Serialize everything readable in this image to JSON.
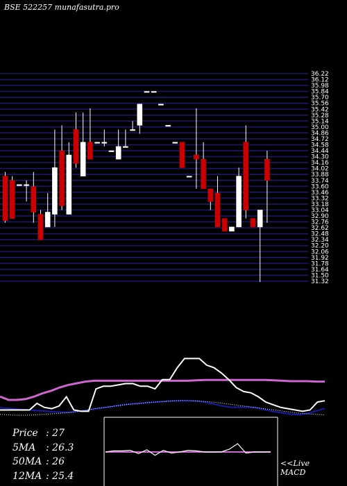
{
  "header": {
    "title": "BSE 522257 munafasutra.pro"
  },
  "stats": {
    "price_label": "Price",
    "price": "27",
    "ma5_label": "5MA",
    "ma5": "26.3",
    "ma50_label": "50MA",
    "ma50": "26",
    "ma12_label": "12MA",
    "ma12": "25.4"
  },
  "macd_panel": {
    "line1": "<<Live",
    "line2": "MACD"
  },
  "colors": {
    "background": "#000000",
    "grid": "#1a1a66",
    "bull": "#ffffff",
    "bear": "#cc0000",
    "ma_pink": "#cc66cc",
    "ma_blue": "#1a1aaa",
    "ma_white": "#ffffff"
  },
  "chart_data": {
    "type": "candlestick",
    "title": "BSE 522257 munafasutra.pro",
    "ylim": [
      31.32,
      36.22
    ],
    "grid": true,
    "y_tick_labels": [
      "36.22",
      "36.12",
      "35.98",
      "35.84",
      "35.70",
      "35.56",
      "35.42",
      "35.28",
      "35.14",
      "35.00",
      "34.86",
      "34.72",
      "34.58",
      "34.44",
      "34.30",
      "34.16",
      "34.02",
      "33.88",
      "33.74",
      "33.60",
      "33.46",
      "33.32",
      "33.18",
      "33.04",
      "32.90",
      "32.76",
      "32.62",
      "32.48",
      "32.34",
      "32.20",
      "32.06",
      "31.92",
      "31.78",
      "31.64",
      "31.50",
      "31.32"
    ],
    "candles": [
      {
        "o": 33.8,
        "h": 33.9,
        "l": 32.7,
        "c": 32.75
      },
      {
        "o": 33.7,
        "h": 33.8,
        "l": 32.8,
        "c": 32.8
      },
      {
        "o": 33.6,
        "h": 33.6,
        "l": 33.6,
        "c": 33.6
      },
      {
        "o": 33.6,
        "h": 33.7,
        "l": 33.2,
        "c": 33.6
      },
      {
        "o": 33.55,
        "h": 33.9,
        "l": 32.7,
        "c": 32.95
      },
      {
        "o": 32.9,
        "h": 33.0,
        "l": 32.3,
        "c": 32.3
      },
      {
        "o": 32.6,
        "h": 33.4,
        "l": 32.6,
        "c": 32.95
      },
      {
        "o": 32.9,
        "h": 34.9,
        "l": 32.6,
        "c": 34.0
      },
      {
        "o": 34.4,
        "h": 35.0,
        "l": 33.0,
        "c": 33.1
      },
      {
        "o": 32.9,
        "h": 34.6,
        "l": 32.9,
        "c": 34.3
      },
      {
        "o": 34.9,
        "h": 35.3,
        "l": 34.0,
        "c": 34.1
      },
      {
        "o": 33.8,
        "h": 35.3,
        "l": 33.8,
        "c": 34.6
      },
      {
        "o": 34.6,
        "h": 35.4,
        "l": 34.2,
        "c": 34.2
      },
      {
        "o": 34.6,
        "h": 34.6,
        "l": 34.6,
        "c": 34.6
      },
      {
        "o": 34.6,
        "h": 34.9,
        "l": 34.5,
        "c": 34.6
      },
      {
        "o": 34.4,
        "h": 34.4,
        "l": 34.4,
        "c": 34.4
      },
      {
        "o": 34.2,
        "h": 34.9,
        "l": 34.2,
        "c": 34.5
      },
      {
        "o": 34.5,
        "h": 34.9,
        "l": 34.5,
        "c": 34.5
      },
      {
        "o": 34.9,
        "h": 35.1,
        "l": 34.9,
        "c": 34.9
      },
      {
        "o": 35.0,
        "h": 35.5,
        "l": 34.8,
        "c": 35.5
      },
      {
        "o": 35.8,
        "h": 35.8,
        "l": 35.8,
        "c": 35.8
      },
      {
        "o": 35.8,
        "h": 35.8,
        "l": 35.8,
        "c": 35.8
      },
      {
        "o": 35.5,
        "h": 35.5,
        "l": 35.5,
        "c": 35.5
      },
      {
        "o": 35.0,
        "h": 35.0,
        "l": 35.0,
        "c": 35.0
      },
      {
        "o": 34.6,
        "h": 34.6,
        "l": 34.6,
        "c": 34.6
      },
      {
        "o": 34.6,
        "h": 34.6,
        "l": 34.0,
        "c": 34.0
      },
      {
        "o": 33.8,
        "h": 33.8,
        "l": 33.8,
        "c": 33.8
      },
      {
        "o": 34.3,
        "h": 35.4,
        "l": 33.5,
        "c": 34.2
      },
      {
        "o": 34.2,
        "h": 34.6,
        "l": 33.5,
        "c": 33.5
      },
      {
        "o": 33.5,
        "h": 33.5,
        "l": 33.0,
        "c": 33.2
      },
      {
        "o": 33.4,
        "h": 33.8,
        "l": 32.6,
        "c": 32.6
      },
      {
        "o": 32.8,
        "h": 32.8,
        "l": 32.5,
        "c": 32.5
      },
      {
        "o": 32.5,
        "h": 32.6,
        "l": 32.5,
        "c": 32.6
      },
      {
        "o": 32.6,
        "h": 34.0,
        "l": 32.6,
        "c": 33.8
      },
      {
        "o": 34.6,
        "h": 35.0,
        "l": 32.8,
        "c": 33.0
      },
      {
        "o": 32.8,
        "h": 32.8,
        "l": 32.6,
        "c": 32.6
      },
      {
        "o": 32.6,
        "h": 33.0,
        "l": 31.3,
        "c": 33.0
      },
      {
        "o": 34.2,
        "h": 34.4,
        "l": 32.7,
        "c": 33.7
      }
    ],
    "indicator_lines": {
      "pink": [
        0.48,
        0.4,
        0.4,
        0.42,
        0.48,
        0.56,
        0.62,
        0.7,
        0.76,
        0.8,
        0.84,
        0.86,
        0.86,
        0.86,
        0.86,
        0.86,
        0.86,
        0.86,
        0.86,
        0.86,
        0.86,
        0.86,
        0.86,
        0.87,
        0.88,
        0.88,
        0.88,
        0.88,
        0.88,
        0.88,
        0.88,
        0.88,
        0.87,
        0.86,
        0.85,
        0.85,
        0.85,
        0.84,
        0.84
      ],
      "blue": [
        0.28,
        0.26,
        0.24,
        0.22,
        0.2,
        0.18,
        0.16,
        0.14,
        0.14,
        0.16,
        0.2,
        0.24,
        0.28,
        0.32,
        0.36,
        0.4,
        0.42,
        0.44,
        0.46,
        0.48,
        0.5,
        0.5,
        0.5,
        0.5,
        0.46,
        0.4,
        0.34,
        0.3,
        0.3,
        0.3,
        0.28,
        0.22,
        0.16,
        0.12,
        0.08,
        0.06,
        0.1,
        0.18,
        0.26
      ],
      "white": [
        0.1,
        0.08,
        0.08,
        0.1,
        0.12,
        0.12,
        0.14,
        0.14,
        0.16,
        0.2,
        0.24,
        0.3,
        0.36,
        0.4,
        0.44,
        0.46,
        0.48,
        0.5,
        0.52,
        0.54,
        0.56,
        0.56,
        0.54,
        0.52,
        0.48,
        0.44,
        0.4,
        0.38,
        0.36,
        0.36,
        0.34,
        0.3,
        0.24,
        0.18,
        0.12,
        0.08,
        0.04,
        0.02,
        0.02
      ],
      "dotted": [
        0.08,
        0.06,
        0.05,
        0.05,
        0.06,
        0.08,
        0.1,
        0.12,
        0.14,
        0.18,
        0.22,
        0.28,
        0.32,
        0.36,
        0.4,
        0.44,
        0.46,
        0.5,
        0.52,
        0.54,
        0.56,
        0.58,
        0.58,
        0.56,
        0.54,
        0.52,
        0.48,
        0.44,
        0.4,
        0.36,
        0.32,
        0.28,
        0.24,
        0.2,
        0.16,
        0.12,
        0.1,
        0.08,
        0.06
      ],
      "strength": [
        0.1,
        0.1,
        0.1,
        0.1,
        0.1,
        0.2,
        0.14,
        0.12,
        0.16,
        0.3,
        0.1,
        0.08,
        0.08,
        0.42,
        0.46,
        0.46,
        0.48,
        0.5,
        0.5,
        0.46,
        0.46,
        0.42,
        0.56,
        0.56,
        0.74,
        0.88,
        0.88,
        0.88,
        0.78,
        0.74,
        0.66,
        0.56,
        0.44,
        0.38,
        0.36,
        0.3,
        0.22,
        0.18,
        0.14,
        0.12,
        0.1,
        0.08,
        0.1,
        0.22,
        0.24
      ]
    },
    "macd": {
      "values": [
        0.0,
        0.02,
        0.02,
        0.03,
        -0.03,
        0.04,
        -0.06,
        0.03,
        -0.02,
        0.0,
        0.03,
        0.02,
        0.0,
        0.0,
        0.0,
        0.05,
        0.15,
        -0.02,
        0.0,
        0.0,
        0.0
      ],
      "signal": 0.0
    }
  }
}
